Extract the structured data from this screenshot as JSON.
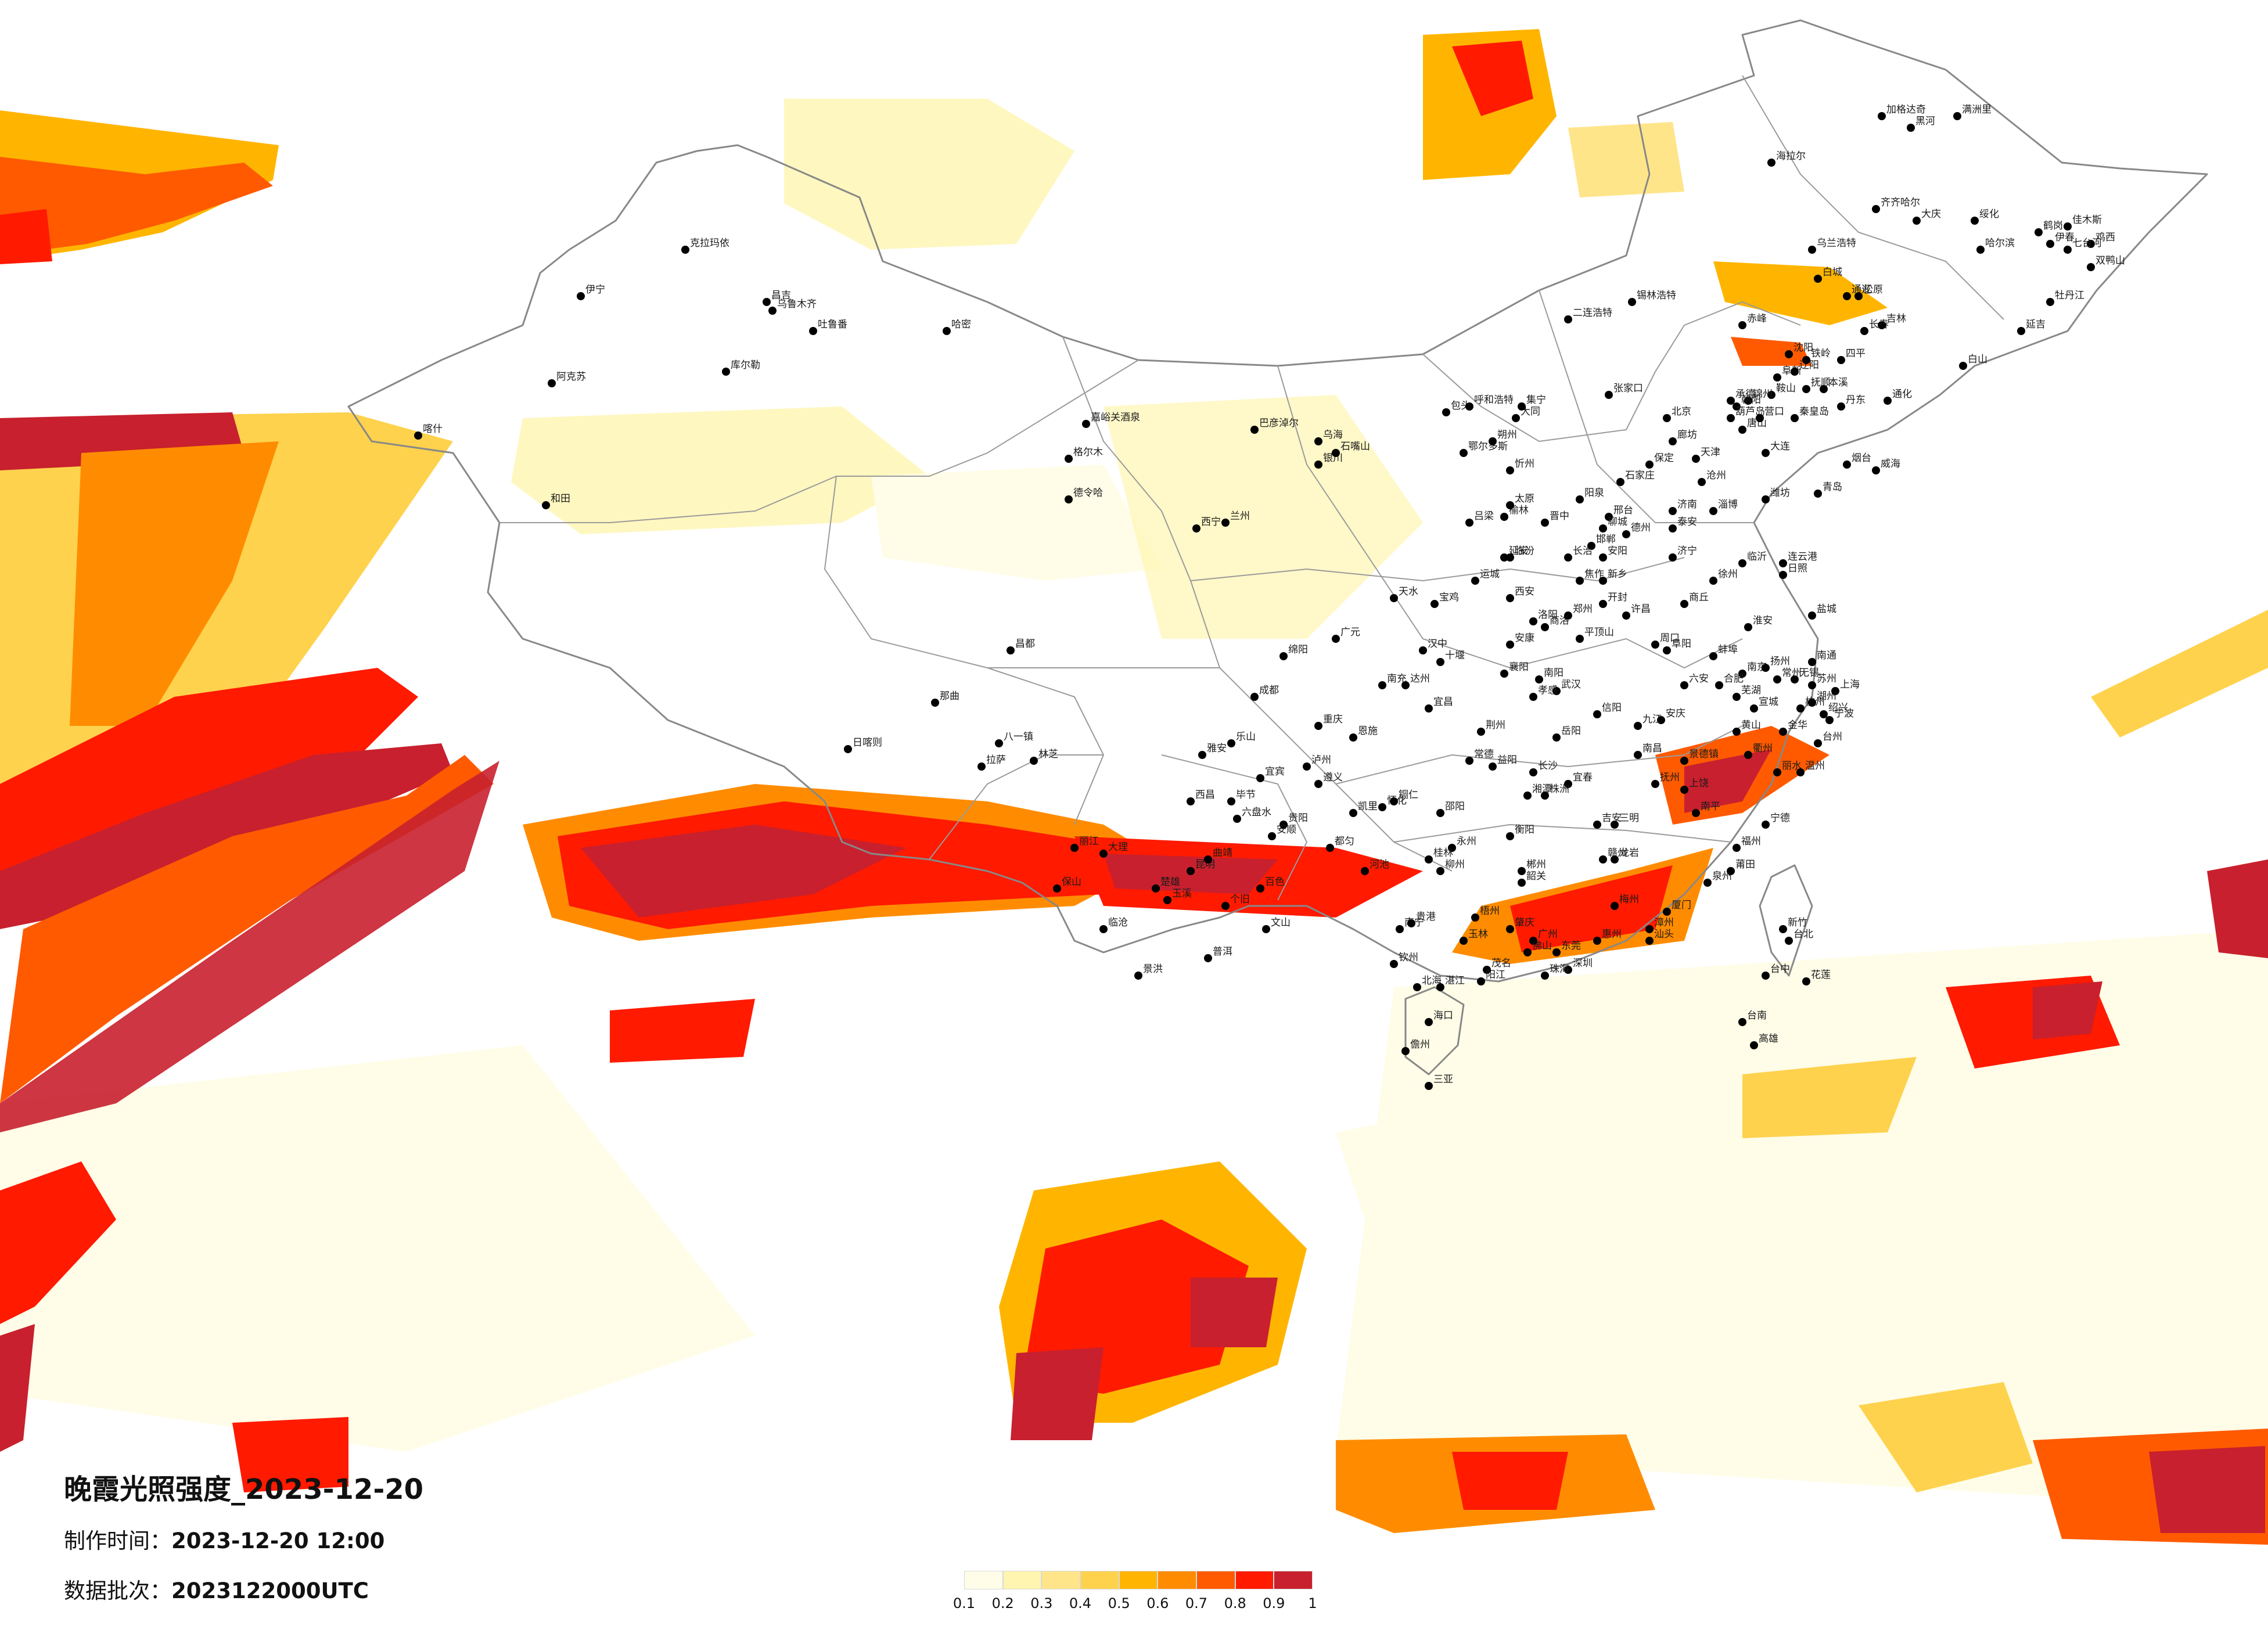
{
  "title": "晚霞光照强度_2023-12-20",
  "meta": {
    "made_label": "制作时间：",
    "made_value": "2023-12-20 12:00",
    "batch_label": "数据批次：",
    "batch_value": "2023122000UTC"
  },
  "legend": {
    "colors": [
      "#fffde8",
      "#fff5b0",
      "#ffe58a",
      "#ffd24d",
      "#ffb500",
      "#ff8c00",
      "#ff5a00",
      "#ff1a00",
      "#c8202e"
    ],
    "ticks": [
      "0.1",
      "0.2",
      "0.3",
      "0.4",
      "0.5",
      "0.6",
      "0.7",
      "0.8",
      "0.9",
      "1"
    ]
  },
  "cities": [
    "克拉玛依",
    "伊宁",
    "昌吉",
    "乌鲁木齐",
    "吐鲁番",
    "哈密",
    "阿克苏",
    "喀什",
    "和田",
    "库尔勒",
    "嘉峪关酒泉",
    "格尔木",
    "德令哈",
    "西宁",
    "兰州",
    "银川",
    "石嘴山",
    "乌海",
    "巴彦淖尔",
    "包头",
    "呼和浩特",
    "鄂尔多斯",
    "榆林",
    "延安",
    "西安",
    "宝鸡",
    "天水",
    "汉中",
    "安康",
    "商洛",
    "张家口",
    "北京",
    "天津",
    "唐山",
    "秦皇岛",
    "承德",
    "石家庄",
    "保定",
    "廊坊",
    "沧州",
    "邢台",
    "邯郸",
    "太原",
    "大同",
    "朔州",
    "忻州",
    "吕梁",
    "晋中",
    "阳泉",
    "长治",
    "临汾",
    "运城",
    "济南",
    "青岛",
    "烟台",
    "威海",
    "潍坊",
    "淄博",
    "济宁",
    "临沂",
    "日照",
    "德州",
    "聊城",
    "泰安",
    "郑州",
    "开封",
    "洛阳",
    "新乡",
    "焦作",
    "安阳",
    "许昌",
    "平顶山",
    "南阳",
    "信阳",
    "周口",
    "商丘",
    "南京",
    "苏州",
    "无锡",
    "常州",
    "徐州",
    "连云港",
    "盐城",
    "扬州",
    "南通",
    "淮安",
    "上海",
    "杭州",
    "宁波",
    "温州",
    "台州",
    "丽水",
    "衢州",
    "绍兴",
    "金华",
    "湖州",
    "合肥",
    "芜湖",
    "蚌埠",
    "阜阳",
    "安庆",
    "黄山",
    "六安",
    "宣城",
    "福州",
    "厦门",
    "泉州",
    "漳州",
    "龙岩",
    "三明",
    "南平",
    "莆田",
    "宁德",
    "南昌",
    "九江",
    "景德镇",
    "上饶",
    "赣州",
    "吉安",
    "宜春",
    "抚州",
    "武汉",
    "宜昌",
    "襄阳",
    "十堰",
    "荆州",
    "岳阳",
    "孝感",
    "恩施",
    "长沙",
    "株洲",
    "湘潭",
    "衡阳",
    "常德",
    "益阳",
    "怀化",
    "永州",
    "郴州",
    "邵阳",
    "广州",
    "深圳",
    "珠海",
    "汕头",
    "佛山",
    "东莞",
    "惠州",
    "湛江",
    "茂名",
    "肇庆",
    "韶关",
    "梅州",
    "阳江",
    "南宁",
    "柳州",
    "桂林",
    "梧州",
    "北海",
    "钦州",
    "玉林",
    "百色",
    "河池",
    "贵港",
    "海口",
    "三亚",
    "儋州",
    "成都",
    "重庆",
    "绵阳",
    "南充",
    "宜宾",
    "泸州",
    "达州",
    "乐山",
    "雅安",
    "西昌",
    "广元",
    "贵阳",
    "遵义",
    "六盘水",
    "安顺",
    "毕节",
    "凯里",
    "都匀",
    "铜仁",
    "昆明",
    "大理",
    "丽江",
    "曲靖",
    "玉溪",
    "普洱",
    "景洪",
    "保山",
    "个旧",
    "文山",
    "楚雄",
    "临沧",
    "拉萨",
    "日喀则",
    "林芝",
    "那曲",
    "昌都",
    "八一镇",
    "沈阳",
    "大连",
    "鞍山",
    "抚顺",
    "本溪",
    "丹东",
    "锦州",
    "营口",
    "阜新",
    "辽阳",
    "铁岭",
    "朝阳",
    "葫芦岛",
    "长春",
    "吉林",
    "四平",
    "通化",
    "白城",
    "延吉",
    "白山",
    "松原",
    "哈尔滨",
    "齐齐哈尔",
    "牡丹江",
    "佳木斯",
    "大庆",
    "鸡西",
    "双鸭山",
    "伊春",
    "七台河",
    "鹤岗",
    "黑河",
    "绥化",
    "海拉尔",
    "加格达奇",
    "满洲里",
    "乌兰浩特",
    "通辽",
    "赤峰",
    "锡林浩特",
    "集宁",
    "二连浩特",
    "台北",
    "台中",
    "高雄",
    "台南",
    "新竹",
    "花莲"
  ]
}
